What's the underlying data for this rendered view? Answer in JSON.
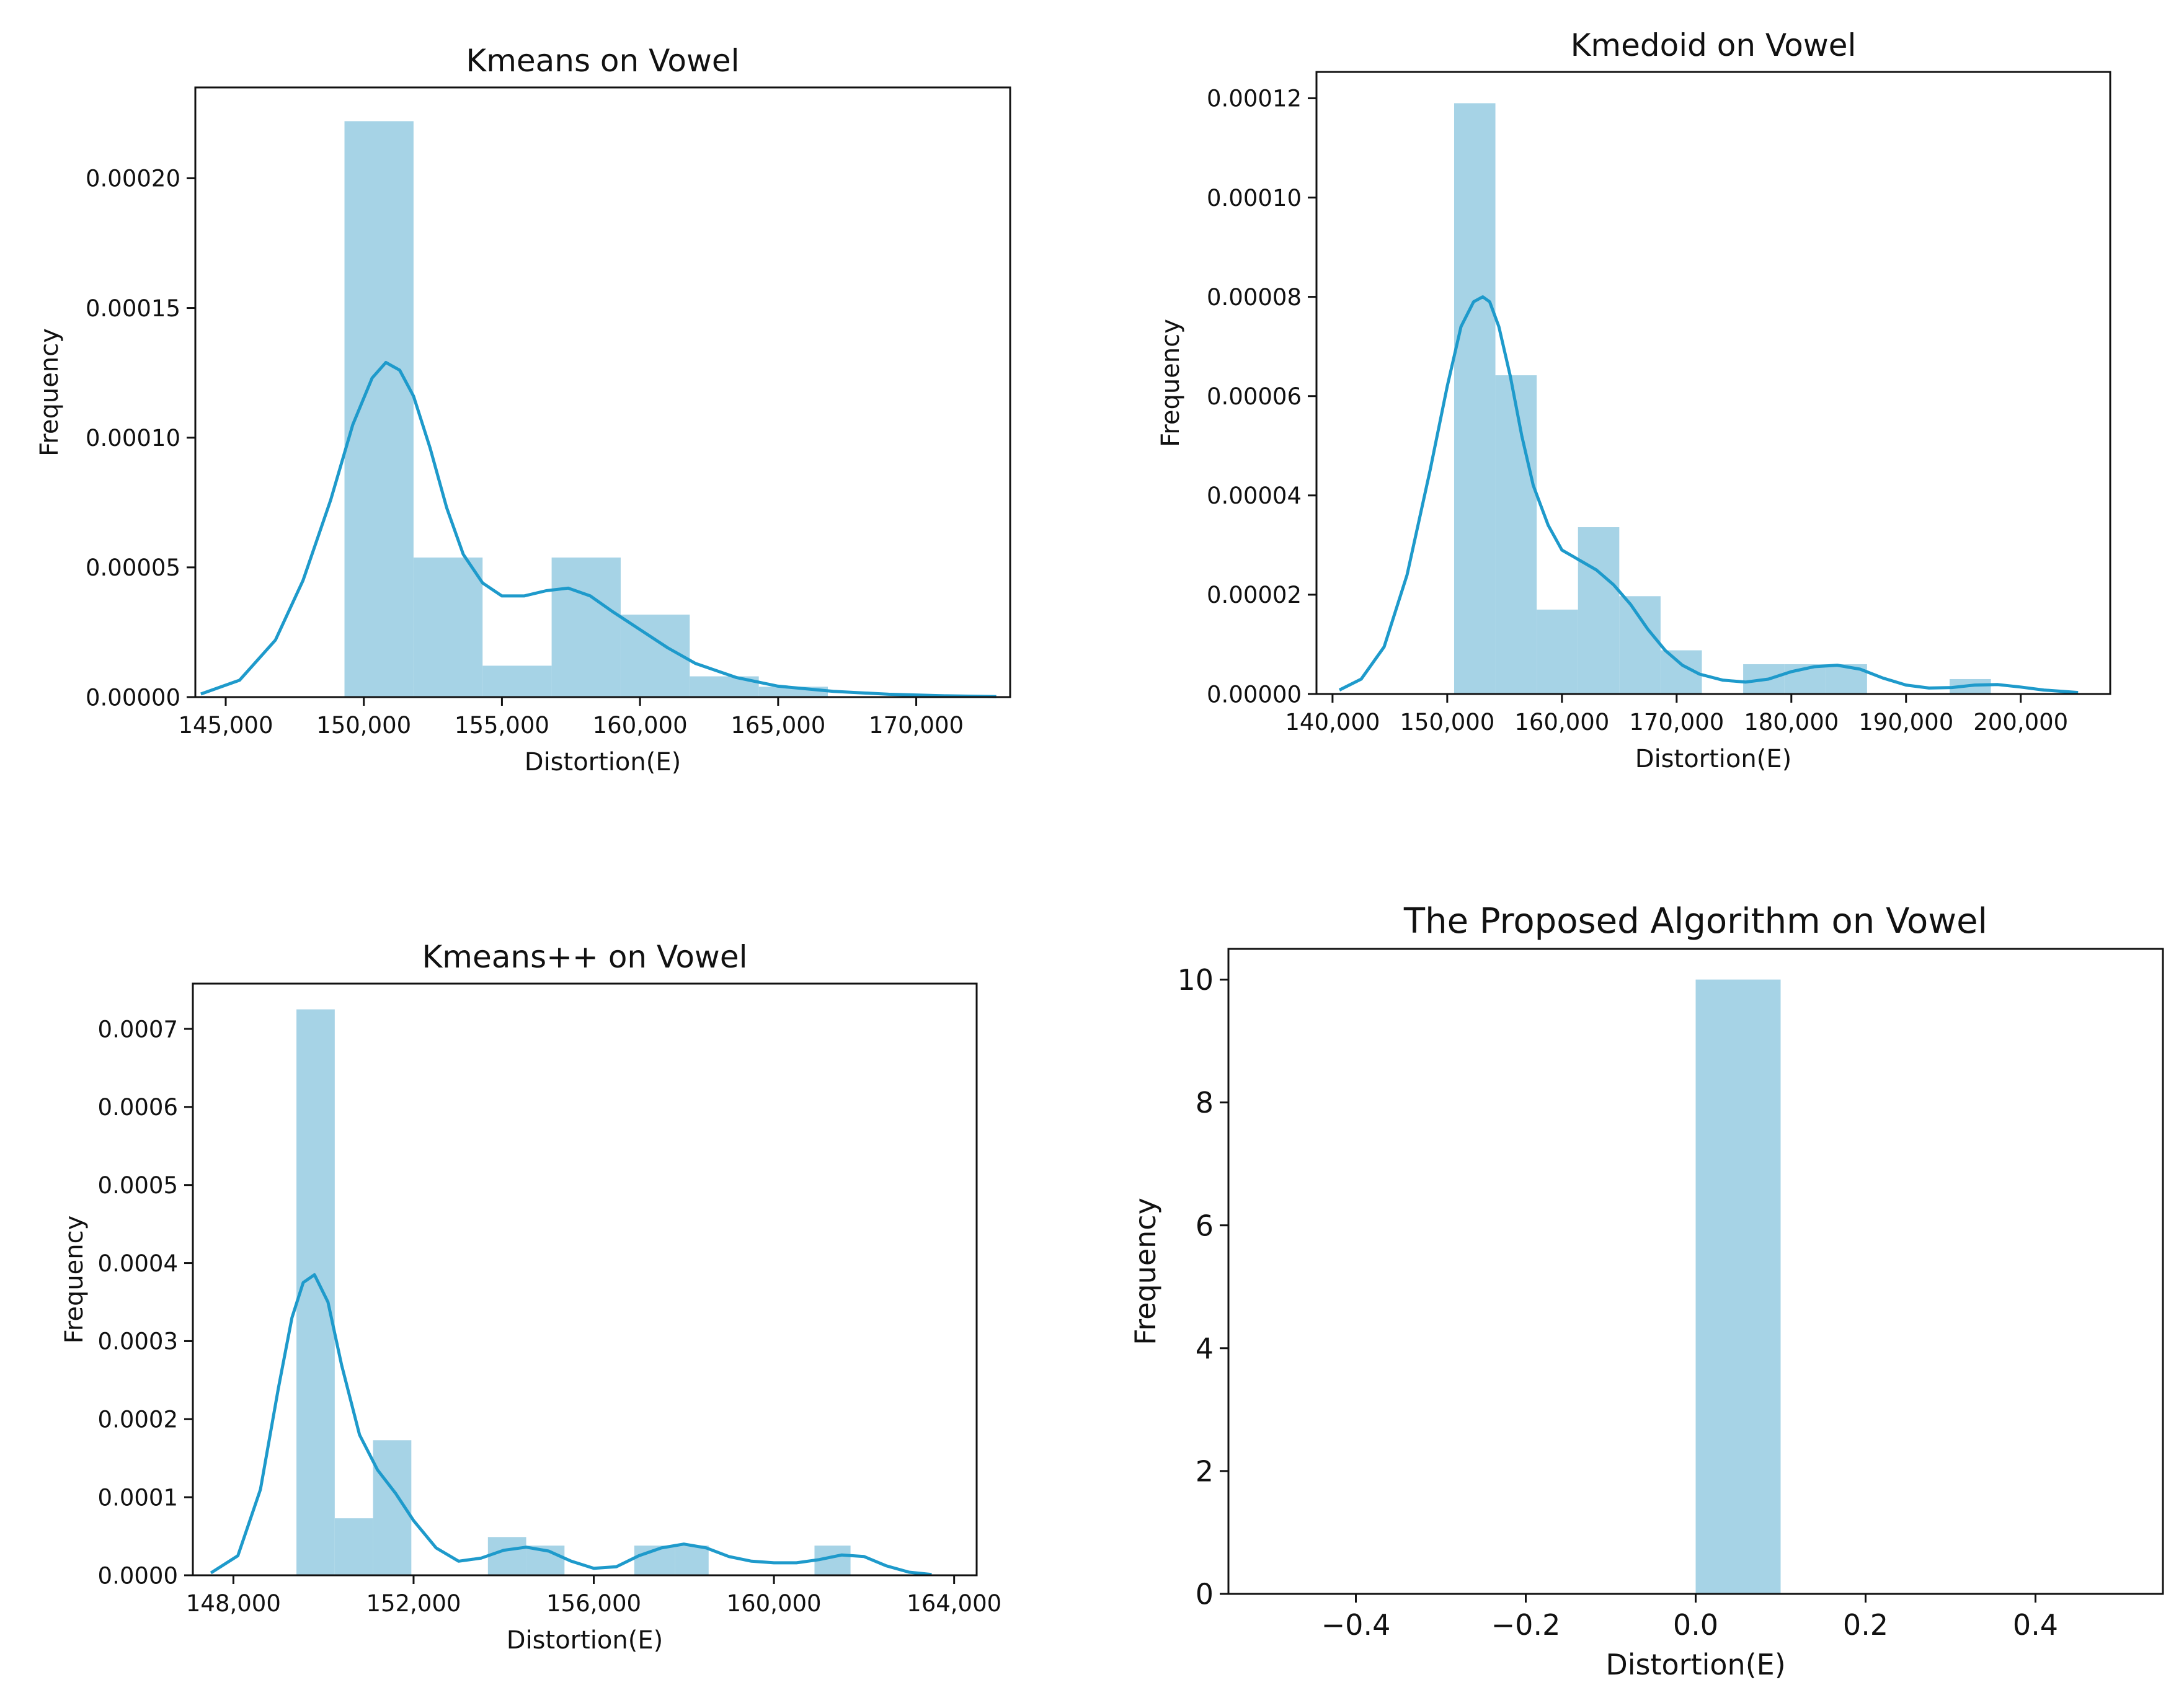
{
  "chart_data": [
    {
      "type": "histogram",
      "title": "Kmeans on Vowel",
      "xlabel": "Distortion(E)",
      "ylabel": "Frequency",
      "xlim": [
        143900,
        173400
      ],
      "ylim": [
        0,
        0.000235
      ],
      "xticks": [
        145000,
        150000,
        155000,
        160000,
        165000,
        170000
      ],
      "xtick_labels": [
        "145,000",
        "150,000",
        "155,000",
        "160,000",
        "165,000",
        "170,000"
      ],
      "yticks": [
        0,
        5e-05,
        0.0001,
        0.00015,
        0.0002
      ],
      "ytick_labels": [
        "0.00000",
        "0.00005",
        "0.00010",
        "0.00015",
        "0.00020"
      ],
      "bins": [
        {
          "x0": 149300,
          "x1": 151800,
          "value": 0.000222
        },
        {
          "x0": 151800,
          "x1": 154300,
          "value": 5.38e-05
        },
        {
          "x0": 154300,
          "x1": 156800,
          "value": 1.21e-05
        },
        {
          "x0": 156800,
          "x1": 159300,
          "value": 5.38e-05
        },
        {
          "x0": 159300,
          "x1": 161800,
          "value": 3.18e-05
        },
        {
          "x0": 161800,
          "x1": 164300,
          "value": 8e-06
        },
        {
          "x0": 164300,
          "x1": 166800,
          "value": 4e-06
        }
      ],
      "kde": {
        "x": [
          144100,
          145500,
          146800,
          147800,
          148800,
          149600,
          150300,
          150800,
          151300,
          151800,
          152400,
          153000,
          153600,
          154300,
          155000,
          155800,
          156600,
          157400,
          158200,
          159000,
          160000,
          161000,
          162000,
          163500,
          165000,
          167000,
          169000,
          171000,
          172900
        ],
        "y": [
          1.2e-06,
          6.5e-06,
          2.2e-05,
          4.5e-05,
          7.6e-05,
          0.000105,
          0.000123,
          0.000129,
          0.000126,
          0.000116,
          9.6e-05,
          7.3e-05,
          5.5e-05,
          4.4e-05,
          3.9e-05,
          3.9e-05,
          4.1e-05,
          4.2e-05,
          3.9e-05,
          3.3e-05,
          2.6e-05,
          1.9e-05,
          1.3e-05,
          7.5e-06,
          4.2e-06,
          2.2e-06,
          1.1e-06,
          5e-07,
          2e-07
        ]
      }
    },
    {
      "type": "histogram",
      "title": "Kmedoid on Vowel",
      "xlabel": "Distortion(E)",
      "ylabel": "Frequency",
      "xlim": [
        138600,
        207800
      ],
      "ylim": [
        0,
        0.0001253
      ],
      "xticks": [
        140000,
        150000,
        160000,
        170000,
        180000,
        190000,
        200000
      ],
      "xtick_labels": [
        "140,000",
        "150,000",
        "160,000",
        "170,000",
        "180,000",
        "190,000",
        "200,000"
      ],
      "yticks": [
        0,
        2e-05,
        4e-05,
        6e-05,
        8e-05,
        0.0001,
        0.00012
      ],
      "ytick_labels": [
        "0.00000",
        "0.00002",
        "0.00004",
        "0.00006",
        "0.00008",
        "0.00010",
        "0.00012"
      ],
      "bins": [
        {
          "x0": 150600,
          "x1": 154200,
          "value": 0.000119
        },
        {
          "x0": 154200,
          "x1": 157800,
          "value": 6.42e-05
        },
        {
          "x0": 157800,
          "x1": 161400,
          "value": 1.7e-05
        },
        {
          "x0": 161400,
          "x1": 165000,
          "value": 3.36e-05
        },
        {
          "x0": 165000,
          "x1": 168600,
          "value": 1.97e-05
        },
        {
          "x0": 168600,
          "x1": 172200,
          "value": 8.8e-06
        },
        {
          "x0": 175800,
          "x1": 179400,
          "value": 6e-06
        },
        {
          "x0": 179400,
          "x1": 183000,
          "value": 6e-06
        },
        {
          "x0": 183000,
          "x1": 186600,
          "value": 6e-06
        },
        {
          "x0": 193800,
          "x1": 197400,
          "value": 3e-06
        }
      ],
      "kde": {
        "x": [
          140600,
          142500,
          144500,
          146500,
          148500,
          150000,
          151200,
          152300,
          153100,
          153700,
          154500,
          155500,
          156500,
          157500,
          158800,
          160000,
          161500,
          163000,
          164500,
          166000,
          167500,
          169000,
          170500,
          172000,
          174000,
          176000,
          178000,
          180000,
          182000,
          184000,
          186000,
          188000,
          190000,
          192000,
          194000,
          196000,
          198000,
          200000,
          202000,
          205000
        ],
        "y": [
          8e-07,
          3e-06,
          9.5e-06,
          2.4e-05,
          4.5e-05,
          6.2e-05,
          7.4e-05,
          7.9e-05,
          8e-05,
          7.9e-05,
          7.4e-05,
          6.4e-05,
          5.2e-05,
          4.2e-05,
          3.4e-05,
          2.9e-05,
          2.7e-05,
          2.5e-05,
          2.2e-05,
          1.8e-05,
          1.3e-05,
          8.8e-06,
          5.8e-06,
          4e-06,
          2.8e-06,
          2.4e-06,
          3e-06,
          4.5e-06,
          5.5e-06,
          5.8e-06,
          5e-06,
          3.2e-06,
          1.8e-06,
          1.2e-06,
          1.3e-06,
          1.8e-06,
          1.9e-06,
          1.4e-06,
          8e-07,
          3e-07
        ]
      }
    },
    {
      "type": "histogram",
      "title": "Kmeans++ on Vowel",
      "xlabel": "Distortion(E)",
      "ylabel": "Frequency",
      "xlim": [
        147100,
        164500
      ],
      "ylim": [
        0,
        0.000758
      ],
      "xticks": [
        148000,
        152000,
        156000,
        160000,
        164000
      ],
      "xtick_labels": [
        "148,000",
        "152,000",
        "156,000",
        "160,000",
        "164,000"
      ],
      "yticks": [
        0,
        0.0001,
        0.0002,
        0.0003,
        0.0004,
        0.0005,
        0.0006,
        0.0007
      ],
      "ytick_labels": [
        "0.0000",
        "0.0001",
        "0.0002",
        "0.0003",
        "0.0004",
        "0.0005",
        "0.0006",
        "0.0007"
      ],
      "bins": [
        {
          "x0": 149400,
          "x1": 150250,
          "value": 0.000725
        },
        {
          "x0": 150250,
          "x1": 151100,
          "value": 7.3e-05
        },
        {
          "x0": 151100,
          "x1": 151950,
          "value": 0.000173
        },
        {
          "x0": 153650,
          "x1": 154500,
          "value": 4.9e-05
        },
        {
          "x0": 154500,
          "x1": 155350,
          "value": 3.8e-05
        },
        {
          "x0": 156900,
          "x1": 157800,
          "value": 3.8e-05
        },
        {
          "x0": 157800,
          "x1": 158550,
          "value": 3.8e-05
        },
        {
          "x0": 160900,
          "x1": 161700,
          "value": 3.8e-05
        }
      ],
      "kde": {
        "x": [
          147500,
          148100,
          148600,
          149000,
          149300,
          149550,
          149800,
          150100,
          150400,
          150800,
          151200,
          151600,
          152000,
          152500,
          153000,
          153500,
          154000,
          154500,
          155000,
          155500,
          156000,
          156500,
          157000,
          157500,
          158000,
          158500,
          159000,
          159500,
          160000,
          160500,
          161000,
          161500,
          162000,
          162500,
          163000,
          163500
        ],
        "y": [
          3e-06,
          2.5e-05,
          0.00011,
          0.00024,
          0.00033,
          0.000375,
          0.000385,
          0.00035,
          0.00027,
          0.00018,
          0.000135,
          0.000105,
          7e-05,
          3.5e-05,
          1.8e-05,
          2.2e-05,
          3.2e-05,
          3.6e-05,
          3.1e-05,
          1.8e-05,
          9e-06,
          1.1e-05,
          2.5e-05,
          3.5e-05,
          4e-05,
          3.5e-05,
          2.4e-05,
          1.8e-05,
          1.6e-05,
          1.6e-05,
          2e-05,
          2.6e-05,
          2.4e-05,
          1.2e-05,
          4e-06,
          1e-06
        ]
      }
    },
    {
      "type": "histogram",
      "title": "The Proposed Algorithm on Vowel",
      "xlabel": "Distortion(E)",
      "ylabel": "Frequency",
      "xlim": [
        -0.55,
        0.55
      ],
      "ylim": [
        0,
        10.5
      ],
      "xticks": [
        -0.4,
        -0.2,
        0.0,
        0.2,
        0.4
      ],
      "xtick_labels": [
        "−0.4",
        "−0.2",
        "0.0",
        "0.2",
        "0.4"
      ],
      "yticks": [
        0,
        2,
        4,
        6,
        8,
        10
      ],
      "ytick_labels": [
        "0",
        "2",
        "4",
        "6",
        "8",
        "10"
      ],
      "bins": [
        {
          "x0": 0.0,
          "x1": 0.1,
          "value": 10
        }
      ]
    }
  ]
}
